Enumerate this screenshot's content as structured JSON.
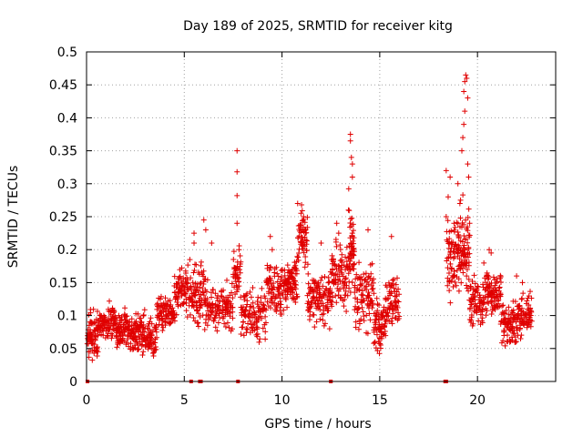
{
  "chart_data": {
    "type": "scatter",
    "title": "Day 189 of 2025, SRMTID for receiver kitg",
    "xlabel": "GPS time / hours",
    "ylabel": "SRMTID / TECUs",
    "xlim": [
      0,
      24
    ],
    "ylim": [
      0,
      0.5
    ],
    "xticks": [
      "0",
      "5",
      "10",
      "15",
      "20"
    ],
    "xtick_values": [
      0,
      5,
      10,
      15,
      20
    ],
    "yticks": [
      "0",
      "0.05",
      "0.1",
      "0.15",
      "0.2",
      "0.25",
      "0.3",
      "0.35",
      "0.4",
      "0.45",
      "0.5"
    ],
    "ytick_values": [
      0,
      0.05,
      0.1,
      0.15,
      0.2,
      0.25,
      0.3,
      0.35,
      0.4,
      0.45,
      0.5
    ],
    "grid": true,
    "marker": "+",
    "color": "#e00000",
    "series": [
      {
        "name": "SRMTID",
        "segments": [
          {
            "x0": 0.05,
            "x1": 0.6,
            "base": 0.07,
            "spread": 0.035,
            "n": 40
          },
          {
            "x0": 0.6,
            "x1": 1.5,
            "base": 0.09,
            "spread": 0.025,
            "n": 45
          },
          {
            "x0": 1.5,
            "x1": 2.2,
            "base": 0.08,
            "spread": 0.03,
            "n": 40
          },
          {
            "x0": 2.2,
            "x1": 3.0,
            "base": 0.075,
            "spread": 0.035,
            "n": 45
          },
          {
            "x0": 3.0,
            "x1": 3.6,
            "base": 0.065,
            "spread": 0.03,
            "n": 35
          },
          {
            "x0": 3.6,
            "x1": 4.5,
            "base": 0.105,
            "spread": 0.025,
            "n": 45
          },
          {
            "x0": 4.5,
            "x1": 5.4,
            "base": 0.14,
            "spread": 0.035,
            "n": 45
          },
          {
            "x0": 5.4,
            "x1": 6.2,
            "base": 0.13,
            "spread": 0.05,
            "n": 45
          },
          {
            "x0": 6.2,
            "x1": 7.5,
            "base": 0.115,
            "spread": 0.035,
            "n": 55
          },
          {
            "x0": 7.5,
            "x1": 7.9,
            "base": 0.16,
            "spread": 0.04,
            "n": 20
          },
          {
            "x0": 7.9,
            "x1": 9.2,
            "base": 0.1,
            "spread": 0.04,
            "n": 55
          },
          {
            "x0": 9.2,
            "x1": 10.2,
            "base": 0.14,
            "spread": 0.04,
            "n": 50
          },
          {
            "x0": 10.2,
            "x1": 10.8,
            "base": 0.15,
            "spread": 0.04,
            "n": 35
          },
          {
            "x0": 10.8,
            "x1": 11.3,
            "base": 0.22,
            "spread": 0.04,
            "n": 30
          },
          {
            "x0": 11.3,
            "x1": 12.5,
            "base": 0.13,
            "spread": 0.045,
            "n": 55
          },
          {
            "x0": 12.5,
            "x1": 13.4,
            "base": 0.16,
            "spread": 0.05,
            "n": 45
          },
          {
            "x0": 13.4,
            "x1": 13.7,
            "base": 0.2,
            "spread": 0.07,
            "n": 25
          },
          {
            "x0": 13.7,
            "x1": 14.7,
            "base": 0.13,
            "spread": 0.05,
            "n": 45
          },
          {
            "x0": 14.7,
            "x1": 15.3,
            "base": 0.085,
            "spread": 0.04,
            "n": 35
          },
          {
            "x0": 15.3,
            "x1": 16.0,
            "base": 0.12,
            "spread": 0.04,
            "n": 35
          },
          {
            "x0": 18.4,
            "x1": 18.9,
            "base": 0.18,
            "spread": 0.06,
            "n": 30
          },
          {
            "x0": 18.9,
            "x1": 19.6,
            "base": 0.2,
            "spread": 0.06,
            "n": 40
          },
          {
            "x0": 19.6,
            "x1": 20.3,
            "base": 0.12,
            "spread": 0.035,
            "n": 40
          },
          {
            "x0": 20.3,
            "x1": 21.2,
            "base": 0.135,
            "spread": 0.035,
            "n": 45
          },
          {
            "x0": 21.2,
            "x1": 22.1,
            "base": 0.09,
            "spread": 0.04,
            "n": 45
          },
          {
            "x0": 22.1,
            "x1": 22.8,
            "base": 0.1,
            "spread": 0.035,
            "n": 35
          }
        ],
        "peaks": [
          [
            5.5,
            0.225
          ],
          [
            5.5,
            0.21
          ],
          [
            6.0,
            0.245
          ],
          [
            6.1,
            0.23
          ],
          [
            6.4,
            0.21
          ],
          [
            7.7,
            0.35
          ],
          [
            7.7,
            0.318
          ],
          [
            7.7,
            0.282
          ],
          [
            7.7,
            0.24
          ],
          [
            7.8,
            0.2
          ],
          [
            9.4,
            0.22
          ],
          [
            9.5,
            0.2
          ],
          [
            10.8,
            0.27
          ],
          [
            11.0,
            0.268
          ],
          [
            11.1,
            0.25
          ],
          [
            12.0,
            0.21
          ],
          [
            12.8,
            0.24
          ],
          [
            12.9,
            0.225
          ],
          [
            13.5,
            0.375
          ],
          [
            13.5,
            0.365
          ],
          [
            13.55,
            0.34
          ],
          [
            13.6,
            0.33
          ],
          [
            13.6,
            0.31
          ],
          [
            13.4,
            0.26
          ],
          [
            14.4,
            0.23
          ],
          [
            15.6,
            0.22
          ],
          [
            18.4,
            0.32
          ],
          [
            18.5,
            0.28
          ],
          [
            18.4,
            0.25
          ],
          [
            18.6,
            0.31
          ],
          [
            18.8,
            0.24
          ],
          [
            19.0,
            0.3
          ],
          [
            19.1,
            0.27
          ],
          [
            19.2,
            0.35
          ],
          [
            19.25,
            0.37
          ],
          [
            19.3,
            0.39
          ],
          [
            19.35,
            0.41
          ],
          [
            19.3,
            0.44
          ],
          [
            19.35,
            0.455
          ],
          [
            19.4,
            0.465
          ],
          [
            19.45,
            0.46
          ],
          [
            19.5,
            0.43
          ],
          [
            19.5,
            0.33
          ],
          [
            19.55,
            0.31
          ],
          [
            19.6,
            0.24
          ],
          [
            20.6,
            0.2
          ],
          [
            20.7,
            0.195
          ],
          [
            22.0,
            0.16
          ],
          [
            22.3,
            0.15
          ]
        ],
        "zeros": [
          0.05,
          5.35,
          5.8,
          5.85,
          7.75,
          12.5,
          18.35,
          18.4
        ]
      }
    ]
  }
}
